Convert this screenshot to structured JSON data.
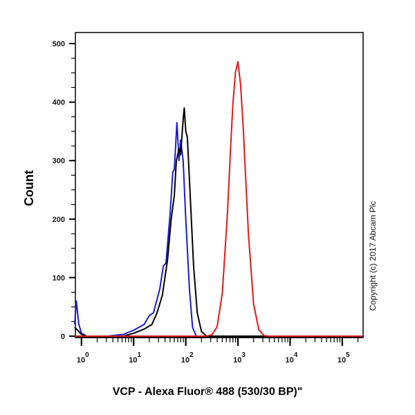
{
  "chart_data": {
    "type": "line",
    "title": "",
    "xlabel": "VCP - Alexa Fluor® 488 (530/30 BP)\"",
    "ylabel": "Count",
    "xscale": "log",
    "xlim_log10": [
      -0.13,
      5.4
    ],
    "ylim": [
      0,
      510
    ],
    "yticks": [
      0,
      100,
      200,
      300,
      400,
      500
    ],
    "xticks": [
      {
        "base": "10",
        "exp": "0"
      },
      {
        "base": "10",
        "exp": "1"
      },
      {
        "base": "10",
        "exp": "2"
      },
      {
        "base": "10",
        "exp": "3"
      },
      {
        "base": "10",
        "exp": "4"
      },
      {
        "base": "10",
        "exp": "5"
      }
    ],
    "annotation": "Copyright (c) 2017 Abcam Plc",
    "grid": false,
    "series": [
      {
        "name": "blue",
        "color": "#1a1acc",
        "log10_x": [
          -0.13,
          -0.1,
          -0.05,
          0.0,
          0.1,
          0.5,
          0.8,
          1.0,
          1.2,
          1.3,
          1.38,
          1.5,
          1.57,
          1.62,
          1.7,
          1.75,
          1.78,
          1.83,
          1.87,
          1.9,
          1.95,
          2.0,
          2.07,
          2.13,
          2.2,
          5.4
        ],
        "y": [
          20,
          60,
          20,
          5,
          0,
          0,
          3,
          10,
          20,
          35,
          40,
          80,
          120,
          125,
          210,
          280,
          285,
          365,
          300,
          335,
          300,
          200,
          80,
          15,
          0,
          0
        ]
      },
      {
        "name": "black",
        "color": "#000000",
        "log10_x": [
          -0.13,
          -0.05,
          0.0,
          0.1,
          0.8,
          1.0,
          1.2,
          1.35,
          1.45,
          1.55,
          1.65,
          1.72,
          1.78,
          1.82,
          1.87,
          1.9,
          1.95,
          1.97,
          2.0,
          2.03,
          2.08,
          2.15,
          2.22,
          2.3,
          2.4,
          5.4
        ],
        "y": [
          15,
          8,
          3,
          0,
          0,
          5,
          12,
          20,
          40,
          70,
          130,
          200,
          240,
          300,
          320,
          310,
          370,
          390,
          350,
          340,
          250,
          120,
          40,
          8,
          0,
          0
        ]
      },
      {
        "name": "red",
        "color": "#dd1a1a",
        "log10_x": [
          -0.13,
          2.3,
          2.4,
          2.5,
          2.6,
          2.7,
          2.8,
          2.85,
          2.9,
          2.95,
          3.0,
          3.05,
          3.1,
          3.15,
          3.2,
          3.3,
          3.4,
          3.5,
          3.6,
          5.4
        ],
        "y": [
          0,
          0,
          0.2,
          2.3,
          16,
          73,
          211,
          305,
          393,
          450,
          469,
          430,
          358,
          268,
          176,
          55,
          11,
          1,
          0,
          0
        ]
      }
    ]
  }
}
